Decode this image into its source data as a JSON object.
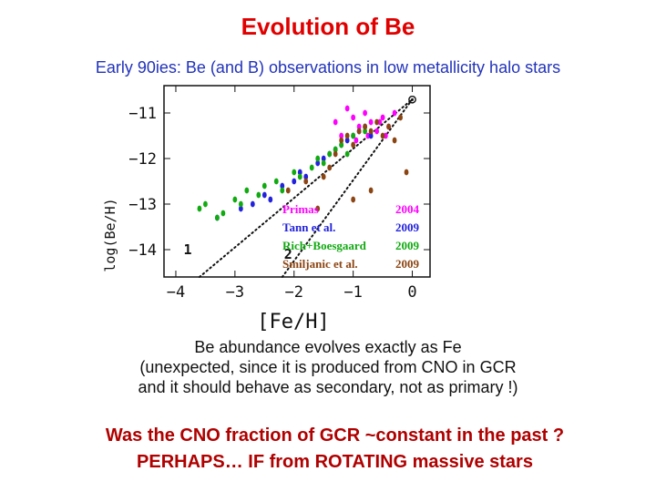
{
  "title": "Evolution of Be",
  "subtitle": "Early 90ies: Be (and B) observations in low metallicity halo stars",
  "description": [
    "Be abundance evolves exactly as Fe",
    "(unexpected, since it is produced from CNO in GCR",
    "and it  should behave as secondary, not as primary !)"
  ],
  "conclusion": [
    "Was the CNO fraction of GCR ~constant in the past ?",
    "PERHAPS… IF from ROTATING massive stars"
  ],
  "colors": {
    "title": "#e00000",
    "subtitle": "#2233bb",
    "conclusion": "#b00000",
    "primas": "#ff00ff",
    "tann": "#2222dd",
    "rich": "#11aa11",
    "smiljanic": "#8b4513"
  },
  "chart_data": {
    "type": "scatter",
    "xlabel": "[Fe/H]",
    "ylabel": "log(Be/H)",
    "xlim": [
      -4.2,
      0.3
    ],
    "ylim": [
      -14.6,
      -10.4
    ],
    "xticks": [
      -4,
      -3,
      -2,
      -1,
      0
    ],
    "xtick_labels": [
      "−4",
      "−3",
      "−2",
      "−1",
      "0"
    ],
    "yticks": [
      -11,
      -12,
      -13,
      -14
    ],
    "ytick_labels": [
      "−11",
      "−12",
      "−13",
      "−14"
    ],
    "annotations": [
      {
        "text": "1",
        "x": -3.8,
        "y": -14.0
      },
      {
        "text": "2",
        "x": -2.1,
        "y": -14.1
      },
      {
        "text": "⊙",
        "x": 0.0,
        "y": -10.7
      }
    ],
    "lines": [
      {
        "name": "line-1",
        "style": "dotted",
        "x": [
          -3.6,
          0.0
        ],
        "y": [
          -14.6,
          -10.7
        ]
      },
      {
        "name": "line-2",
        "style": "dotted",
        "x": [
          -2.2,
          0.0
        ],
        "y": [
          -14.6,
          -10.7
        ]
      }
    ],
    "series": [
      {
        "name": "Primas",
        "year": "2004",
        "color": "#ff00ff",
        "x": [
          -1.3,
          -1.1,
          -1.0,
          -0.9,
          -0.8,
          -0.7,
          -0.6,
          -0.5,
          -0.4,
          -0.3,
          -1.2,
          -0.95,
          -0.75,
          -0.55,
          -0.45
        ],
        "y": [
          -11.2,
          -10.9,
          -11.1,
          -11.3,
          -11.0,
          -11.2,
          -11.4,
          -11.1,
          -11.3,
          -11.0,
          -11.5,
          -11.6,
          -11.5,
          -11.2,
          -11.5
        ]
      },
      {
        "name": "Tann et al.",
        "year": "2009",
        "color": "#2222dd",
        "x": [
          -3.3,
          -2.9,
          -2.7,
          -2.5,
          -2.4,
          -2.2,
          -2.0,
          -1.9,
          -1.8,
          -1.6,
          -1.5,
          -1.4,
          -1.3,
          -1.2,
          -1.1,
          -1.0,
          -0.9,
          -0.8,
          -0.7
        ],
        "y": [
          -13.3,
          -13.1,
          -13.0,
          -12.8,
          -12.9,
          -12.6,
          -12.5,
          -12.3,
          -12.4,
          -12.1,
          -12.0,
          -11.9,
          -11.8,
          -11.7,
          -11.6,
          -11.5,
          -11.4,
          -11.3,
          -11.5
        ]
      },
      {
        "name": "Rich+Boesgaard",
        "year": "2009",
        "color": "#11aa11",
        "x": [
          -3.6,
          -3.5,
          -3.3,
          -3.2,
          -3.0,
          -2.9,
          -2.8,
          -2.6,
          -2.5,
          -2.3,
          -2.2,
          -2.0,
          -1.9,
          -1.7,
          -1.6,
          -1.5,
          -1.4,
          -1.3,
          -1.2,
          -1.1,
          -1.0,
          -0.8
        ],
        "y": [
          -13.1,
          -13.0,
          -13.3,
          -13.2,
          -12.9,
          -13.0,
          -12.7,
          -12.8,
          -12.6,
          -12.5,
          -12.7,
          -12.3,
          -12.4,
          -12.2,
          -12.0,
          -12.1,
          -11.9,
          -11.8,
          -11.7,
          -11.9,
          -11.5,
          -11.4
        ]
      },
      {
        "name": "Smiljanic et al.",
        "year": "2009",
        "color": "#8b4513",
        "x": [
          -2.1,
          -1.8,
          -1.5,
          -1.4,
          -1.3,
          -1.2,
          -1.1,
          -1.0,
          -0.9,
          -0.8,
          -0.7,
          -0.6,
          -0.5,
          -0.4,
          -0.3,
          -0.2,
          -1.6,
          -1.0,
          -0.7,
          -0.1
        ],
        "y": [
          -12.7,
          -12.5,
          -12.4,
          -12.2,
          -11.9,
          -11.6,
          -11.5,
          -11.7,
          -11.4,
          -11.3,
          -11.4,
          -11.2,
          -11.5,
          -11.3,
          -11.6,
          -11.1,
          -13.1,
          -12.9,
          -12.7,
          -12.3
        ]
      }
    ]
  }
}
